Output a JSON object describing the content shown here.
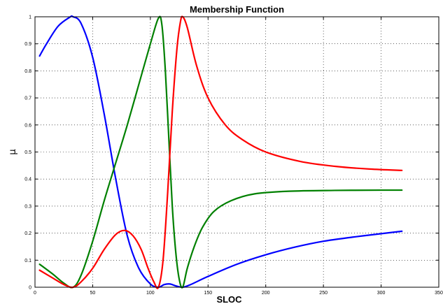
{
  "chart_data": {
    "type": "line",
    "title": "Membership Function",
    "xlabel": "SLOC",
    "ylabel": "µ",
    "xlim": [
      0,
      350
    ],
    "ylim": [
      0,
      1
    ],
    "grid": true,
    "xticks": [
      0,
      50,
      100,
      150,
      200,
      250,
      300,
      350
    ],
    "yticks": [
      0,
      0.1,
      0.2,
      0.3,
      0.4,
      0.5,
      0.6,
      0.7,
      0.8,
      0.9,
      1
    ],
    "xtick_labels": [
      "0",
      "50",
      "100",
      "150",
      "200",
      "250",
      "300",
      "350"
    ],
    "ytick_labels": [
      "0",
      "0.1",
      "0.2",
      "0.3",
      "0.4",
      "0.5",
      "0.6",
      "0.7",
      "0.8",
      "0.9",
      "1"
    ],
    "series": [
      {
        "color": "#0000ff",
        "points": [
          [
            4,
            0.855
          ],
          [
            10,
            0.9
          ],
          [
            20,
            0.965
          ],
          [
            30,
            0.998
          ],
          [
            33,
            1.0
          ],
          [
            40,
            0.975
          ],
          [
            50,
            0.85
          ],
          [
            60,
            0.64
          ],
          [
            70,
            0.4
          ],
          [
            80,
            0.19
          ],
          [
            90,
            0.07
          ],
          [
            100,
            0.012
          ],
          [
            107,
            0.0
          ],
          [
            112,
            0.01
          ],
          [
            117,
            0.012
          ],
          [
            122,
            0.005
          ],
          [
            128,
            0.0
          ],
          [
            135,
            0.01
          ],
          [
            150,
            0.04
          ],
          [
            175,
            0.085
          ],
          [
            200,
            0.12
          ],
          [
            225,
            0.148
          ],
          [
            250,
            0.17
          ],
          [
            275,
            0.185
          ],
          [
            300,
            0.198
          ],
          [
            318,
            0.207
          ]
        ]
      },
      {
        "color": "#008000",
        "points": [
          [
            4,
            0.085
          ],
          [
            15,
            0.05
          ],
          [
            25,
            0.015
          ],
          [
            33,
            0.0
          ],
          [
            40,
            0.045
          ],
          [
            50,
            0.17
          ],
          [
            60,
            0.32
          ],
          [
            70,
            0.46
          ],
          [
            80,
            0.6
          ],
          [
            90,
            0.75
          ],
          [
            100,
            0.9
          ],
          [
            107,
            0.995
          ],
          [
            110,
            0.97
          ],
          [
            113,
            0.8
          ],
          [
            116,
            0.55
          ],
          [
            119,
            0.3
          ],
          [
            122,
            0.13
          ],
          [
            125,
            0.03
          ],
          [
            128,
            0.0
          ],
          [
            132,
            0.07
          ],
          [
            138,
            0.15
          ],
          [
            145,
            0.22
          ],
          [
            155,
            0.28
          ],
          [
            170,
            0.32
          ],
          [
            190,
            0.345
          ],
          [
            220,
            0.355
          ],
          [
            260,
            0.358
          ],
          [
            300,
            0.359
          ],
          [
            318,
            0.359
          ]
        ]
      },
      {
        "color": "#ff0000",
        "points": [
          [
            4,
            0.063
          ],
          [
            15,
            0.035
          ],
          [
            25,
            0.01
          ],
          [
            33,
            0.0
          ],
          [
            40,
            0.02
          ],
          [
            50,
            0.07
          ],
          [
            60,
            0.14
          ],
          [
            70,
            0.195
          ],
          [
            78,
            0.21
          ],
          [
            85,
            0.19
          ],
          [
            92,
            0.14
          ],
          [
            98,
            0.07
          ],
          [
            103,
            0.02
          ],
          [
            107,
            0.0
          ],
          [
            111,
            0.1
          ],
          [
            115,
            0.35
          ],
          [
            119,
            0.65
          ],
          [
            123,
            0.88
          ],
          [
            126,
            0.98
          ],
          [
            128,
            1.0
          ],
          [
            132,
            0.96
          ],
          [
            140,
            0.82
          ],
          [
            150,
            0.7
          ],
          [
            165,
            0.6
          ],
          [
            180,
            0.545
          ],
          [
            200,
            0.5
          ],
          [
            230,
            0.465
          ],
          [
            260,
            0.447
          ],
          [
            290,
            0.437
          ],
          [
            318,
            0.432
          ]
        ]
      }
    ]
  }
}
